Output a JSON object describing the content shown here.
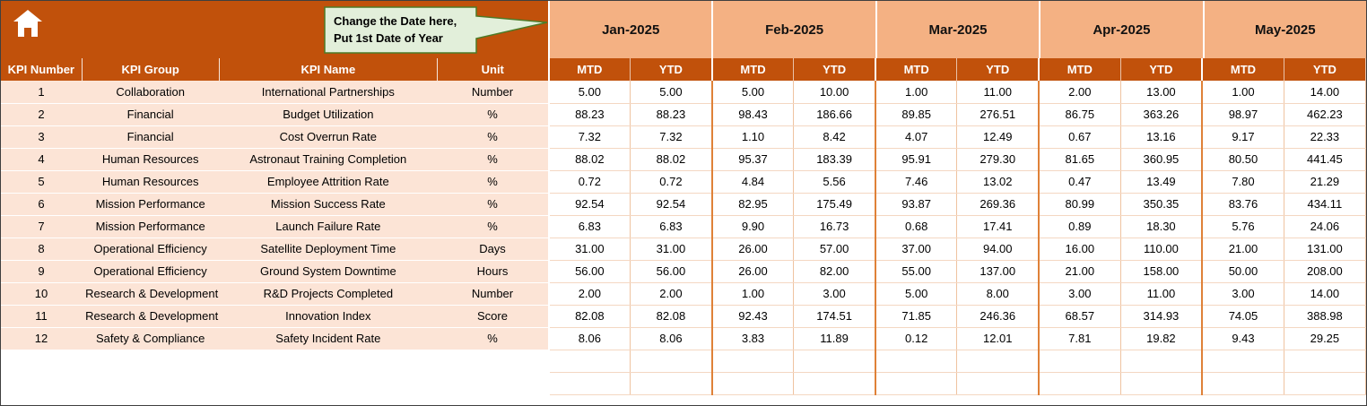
{
  "banner": {
    "home_icon": "home",
    "callout": {
      "line1": "Change the Date here,",
      "line2": "Put 1st Date of Year"
    },
    "months": [
      "Jan-2025",
      "Feb-2025",
      "Mar-2025",
      "Apr-2025",
      "May-2025"
    ]
  },
  "table": {
    "left_headers": [
      "KPI Number",
      "KPI Group",
      "KPI Name",
      "Unit"
    ],
    "sub_headers": {
      "mtd": "MTD",
      "ytd": "YTD"
    },
    "rows": [
      {
        "number": "1",
        "group": "Collaboration",
        "name": "International Partnerships",
        "unit": "Number",
        "values": [
          "5.00",
          "5.00",
          "5.00",
          "10.00",
          "1.00",
          "11.00",
          "2.00",
          "13.00",
          "1.00",
          "14.00"
        ]
      },
      {
        "number": "2",
        "group": "Financial",
        "name": "Budget Utilization",
        "unit": "%",
        "values": [
          "88.23",
          "88.23",
          "98.43",
          "186.66",
          "89.85",
          "276.51",
          "86.75",
          "363.26",
          "98.97",
          "462.23"
        ]
      },
      {
        "number": "3",
        "group": "Financial",
        "name": "Cost Overrun Rate",
        "unit": "%",
        "values": [
          "7.32",
          "7.32",
          "1.10",
          "8.42",
          "4.07",
          "12.49",
          "0.67",
          "13.16",
          "9.17",
          "22.33"
        ]
      },
      {
        "number": "4",
        "group": "Human Resources",
        "name": "Astronaut Training Completion",
        "unit": "%",
        "values": [
          "88.02",
          "88.02",
          "95.37",
          "183.39",
          "95.91",
          "279.30",
          "81.65",
          "360.95",
          "80.50",
          "441.45"
        ]
      },
      {
        "number": "5",
        "group": "Human Resources",
        "name": "Employee Attrition Rate",
        "unit": "%",
        "values": [
          "0.72",
          "0.72",
          "4.84",
          "5.56",
          "7.46",
          "13.02",
          "0.47",
          "13.49",
          "7.80",
          "21.29"
        ]
      },
      {
        "number": "6",
        "group": "Mission Performance",
        "name": "Mission Success Rate",
        "unit": "%",
        "values": [
          "92.54",
          "92.54",
          "82.95",
          "175.49",
          "93.87",
          "269.36",
          "80.99",
          "350.35",
          "83.76",
          "434.11"
        ]
      },
      {
        "number": "7",
        "group": "Mission Performance",
        "name": "Launch Failure Rate",
        "unit": "%",
        "values": [
          "6.83",
          "6.83",
          "9.90",
          "16.73",
          "0.68",
          "17.41",
          "0.89",
          "18.30",
          "5.76",
          "24.06"
        ]
      },
      {
        "number": "8",
        "group": "Operational Efficiency",
        "name": "Satellite Deployment Time",
        "unit": "Days",
        "values": [
          "31.00",
          "31.00",
          "26.00",
          "57.00",
          "37.00",
          "94.00",
          "16.00",
          "110.00",
          "21.00",
          "131.00"
        ]
      },
      {
        "number": "9",
        "group": "Operational Efficiency",
        "name": "Ground System Downtime",
        "unit": "Hours",
        "values": [
          "56.00",
          "56.00",
          "26.00",
          "82.00",
          "55.00",
          "137.00",
          "21.00",
          "158.00",
          "50.00",
          "208.00"
        ]
      },
      {
        "number": "10",
        "group": "Research & Development",
        "name": "R&D Projects Completed",
        "unit": "Number",
        "values": [
          "2.00",
          "2.00",
          "1.00",
          "3.00",
          "5.00",
          "8.00",
          "3.00",
          "11.00",
          "3.00",
          "14.00"
        ]
      },
      {
        "number": "11",
        "group": "Research & Development",
        "name": "Innovation Index",
        "unit": "Score",
        "values": [
          "82.08",
          "82.08",
          "92.43",
          "174.51",
          "71.85",
          "246.36",
          "68.57",
          "314.93",
          "74.05",
          "388.98"
        ]
      },
      {
        "number": "12",
        "group": "Safety & Compliance",
        "name": "Safety Incident Rate",
        "unit": "%",
        "values": [
          "8.06",
          "8.06",
          "3.83",
          "11.89",
          "0.12",
          "12.01",
          "7.81",
          "19.82",
          "9.43",
          "29.25"
        ]
      }
    ],
    "empty_row_count": 2
  },
  "colors": {
    "header_orange": "#C1510B",
    "month_salmon": "#F4B183",
    "row_peach": "#FCE4D6",
    "callout_fill": "#E2EFDA",
    "callout_border": "#4E7A27",
    "grid_orange": "#EFC3A0",
    "month_divider": "#DF8138"
  }
}
